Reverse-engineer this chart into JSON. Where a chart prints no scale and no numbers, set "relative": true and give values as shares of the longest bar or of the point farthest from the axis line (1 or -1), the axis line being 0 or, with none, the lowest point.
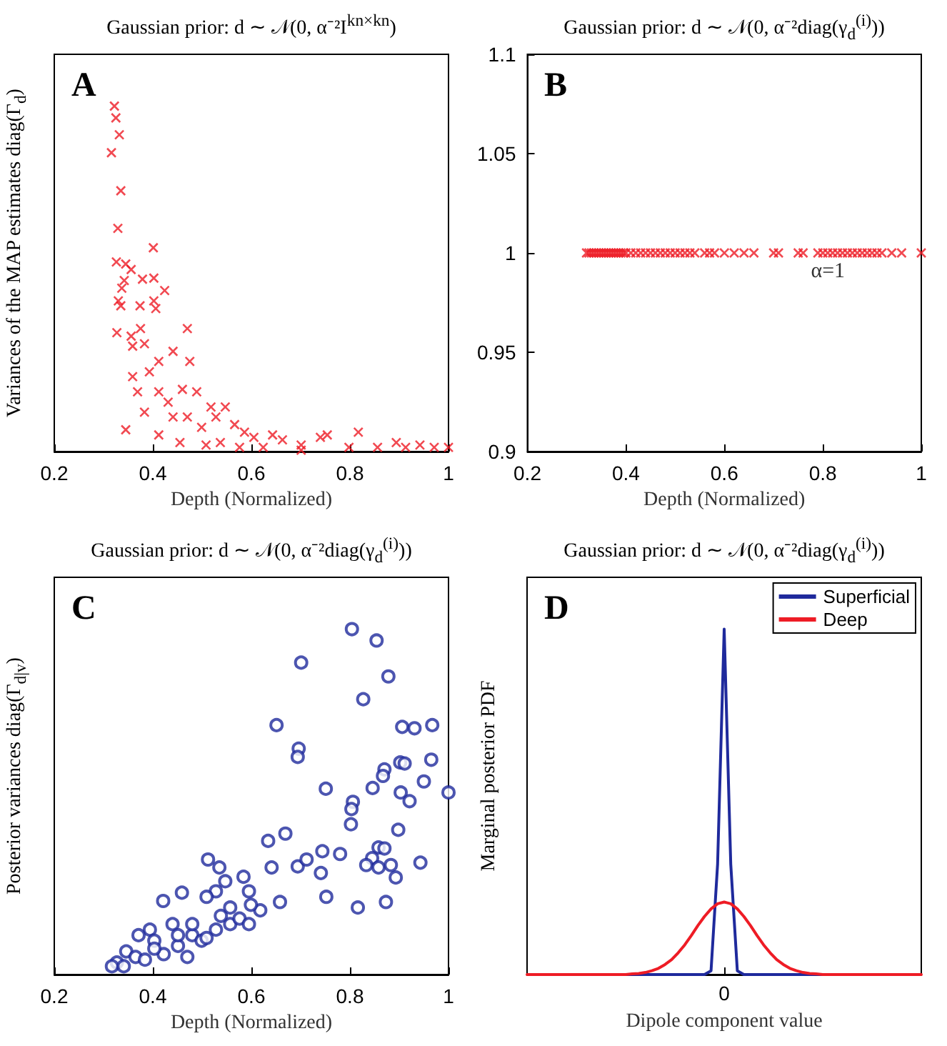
{
  "chart_data": [
    {
      "type": "scatter",
      "title": "Gaussian prior: d ∼ 𝒩(0, α⁻²I$^{kn×kn}$)",
      "xlabel": "Depth (Normalized)",
      "ylabel": "Variances of the MAP estimates diag(Γ$_{d}$)",
      "annotations": [
        "A"
      ],
      "relative": true,
      "marker": "cross",
      "xlim": [
        0.2,
        1
      ],
      "xticks": [
        0.2,
        0.4,
        0.6,
        0.8,
        1
      ],
      "series": [
        {
          "color": "#ee1c25",
          "x": [
            0.322,
            0.325,
            0.332,
            0.316,
            0.335,
            0.329,
            0.401,
            0.326,
            0.345,
            0.356,
            0.342,
            0.337,
            0.379,
            0.402,
            0.424,
            0.402,
            0.33,
            0.335,
            0.374,
            0.406,
            0.327,
            0.47,
            0.475,
            0.356,
            0.375,
            0.359,
            0.383,
            0.412,
            0.441,
            0.359,
            0.393,
            0.369,
            0.412,
            0.431,
            0.46,
            0.489,
            0.383,
            0.345,
            0.412,
            0.455,
            0.518,
            0.547,
            0.528,
            0.566,
            0.499,
            0.586,
            0.605,
            0.537,
            0.643,
            0.663,
            0.701,
            0.74,
            0.754,
            0.798,
            0.817,
            0.856,
            0.894,
            0.942,
            0.971,
            1.0,
            0.701,
            0.913,
            0.624,
            0.576,
            0.47,
            0.441,
            0.508
          ],
          "values": [
            1.0,
            0.966,
            0.917,
            0.865,
            0.755,
            0.646,
            0.59,
            0.549,
            0.543,
            0.527,
            0.495,
            0.473,
            0.499,
            0.502,
            0.466,
            0.436,
            0.436,
            0.422,
            0.422,
            0.414,
            0.344,
            0.356,
            0.261,
            0.334,
            0.356,
            0.305,
            0.312,
            0.261,
            0.29,
            0.217,
            0.231,
            0.173,
            0.173,
            0.143,
            0.18,
            0.173,
            0.114,
            0.063,
            0.048,
            0.026,
            0.129,
            0.129,
            0.1,
            0.078,
            0.07,
            0.056,
            0.041,
            0.026,
            0.048,
            0.034,
            0.019,
            0.041,
            0.048,
            0.012,
            0.056,
            0.012,
            0.026,
            0.019,
            0.012,
            0.012,
            0.004,
            0.012,
            0.012,
            0.012,
            0.1,
            0.1,
            0.019
          ]
        }
      ]
    },
    {
      "type": "scatter",
      "title": "Gaussian prior: d ∼ 𝒩(0, α⁻²diag(γ$_{d}$$^{(i)}$))",
      "xlabel": "Depth (Normalized)",
      "annotations": [
        "B",
        "α=1"
      ],
      "marker": "cross",
      "xlim": [
        0.2,
        1
      ],
      "xticks": [
        0.2,
        0.4,
        0.6,
        0.8,
        1
      ],
      "ylim": [
        0.9,
        1.1
      ],
      "yticks": [
        0.9,
        0.95,
        1,
        1.05,
        1.1
      ],
      "series": [
        {
          "color": "#ee1c25",
          "x": [
            0.32,
            0.325,
            0.33,
            0.335,
            0.34,
            0.345,
            0.35,
            0.355,
            0.36,
            0.365,
            0.37,
            0.375,
            0.38,
            0.385,
            0.39,
            0.395,
            0.4,
            0.41,
            0.42,
            0.43,
            0.44,
            0.45,
            0.46,
            0.47,
            0.48,
            0.49,
            0.5,
            0.51,
            0.52,
            0.53,
            0.54,
            0.56,
            0.57,
            0.58,
            0.6,
            0.62,
            0.64,
            0.66,
            0.7,
            0.71,
            0.75,
            0.76,
            0.79,
            0.8,
            0.81,
            0.82,
            0.83,
            0.84,
            0.85,
            0.86,
            0.87,
            0.88,
            0.89,
            0.9,
            0.91,
            0.92,
            0.94,
            0.96,
            1.0
          ],
          "values": [
            1,
            1,
            1,
            1,
            1,
            1,
            1,
            1,
            1,
            1,
            1,
            1,
            1,
            1,
            1,
            1,
            1,
            1,
            1,
            1,
            1,
            1,
            1,
            1,
            1,
            1,
            1,
            1,
            1,
            1,
            1,
            1,
            1,
            1,
            1,
            1,
            1,
            1,
            1,
            1,
            1,
            1,
            1,
            1,
            1,
            1,
            1,
            1,
            1,
            1,
            1,
            1,
            1,
            1,
            1,
            1,
            1,
            1,
            1
          ]
        }
      ]
    },
    {
      "type": "scatter",
      "title": "Gaussian prior: d ∼ 𝒩(0, α⁻²diag(γ$_{d}$$^{(i)}$))",
      "xlabel": "Depth (Normalized)",
      "ylabel": "Posterior variances diag(Γ$_{d|v}$)",
      "annotations": [
        "C"
      ],
      "relative": true,
      "marker": "circle",
      "xlim": [
        0.2,
        1
      ],
      "xticks": [
        0.2,
        0.4,
        0.6,
        0.8,
        1
      ],
      "series": [
        {
          "color": "#1f2a9c",
          "x": [
            0.804,
            0.854,
            0.701,
            0.878,
            0.827,
            0.651,
            0.696,
            0.694,
            0.906,
            0.931,
            0.967,
            0.902,
            0.911,
            0.965,
            0.87,
            0.867,
            0.751,
            1.0,
            0.903,
            0.921,
            0.806,
            0.803,
            0.802,
            0.846,
            0.95,
            0.898,
            0.634,
            0.512,
            0.535,
            0.584,
            0.641,
            0.694,
            0.712,
            0.744,
            0.78,
            0.741,
            0.752,
            0.816,
            0.873,
            0.893,
            0.943,
            0.858,
            0.845,
            0.833,
            0.858,
            0.883,
            0.87,
            0.669,
            0.658,
            0.618,
            0.595,
            0.599,
            0.547,
            0.528,
            0.509,
            0.459,
            0.421,
            0.44,
            0.394,
            0.371,
            0.403,
            0.451,
            0.48,
            0.499,
            0.528,
            0.557,
            0.576,
            0.595,
            0.47,
            0.346,
            0.365,
            0.327,
            0.317,
            0.341,
            0.384,
            0.422,
            0.509,
            0.538,
            0.557,
            0.48,
            0.403,
            0.451
          ],
          "values": [
            1.0,
            0.967,
            0.903,
            0.863,
            0.797,
            0.722,
            0.654,
            0.63,
            0.717,
            0.713,
            0.722,
            0.614,
            0.611,
            0.622,
            0.594,
            0.575,
            0.538,
            0.527,
            0.527,
            0.502,
            0.5,
            0.479,
            0.435,
            0.54,
            0.559,
            0.419,
            0.387,
            0.333,
            0.31,
            0.283,
            0.31,
            0.313,
            0.333,
            0.357,
            0.349,
            0.294,
            0.225,
            0.194,
            0.21,
            0.281,
            0.324,
            0.368,
            0.337,
            0.317,
            0.31,
            0.317,
            0.365,
            0.408,
            0.21,
            0.186,
            0.241,
            0.202,
            0.27,
            0.241,
            0.225,
            0.237,
            0.213,
            0.146,
            0.13,
            0.114,
            0.098,
            0.083,
            0.114,
            0.098,
            0.13,
            0.146,
            0.162,
            0.146,
            0.051,
            0.067,
            0.051,
            0.035,
            0.024,
            0.024,
            0.043,
            0.059,
            0.106,
            0.17,
            0.194,
            0.146,
            0.075,
            0.114
          ]
        }
      ]
    },
    {
      "type": "line",
      "title": "Gaussian prior: d ∼ 𝒩(0, α⁻²diag(γ$_{d}$$^{(i)}$))",
      "xlabel": "Dipole component value",
      "ylabel": "Marginal posterior PDF",
      "annotations": [
        "D",
        "0"
      ],
      "relative": true,
      "marker": "none",
      "line_style": "solid",
      "legend": "top right",
      "categories": [
        null,
        null,
        null,
        null,
        null,
        null,
        null,
        null,
        null,
        null,
        null,
        null,
        null,
        null,
        null,
        null,
        null,
        null,
        null,
        null,
        null,
        null,
        null,
        null,
        null,
        null,
        null,
        null,
        null,
        null,
        null,
        null,
        null,
        null,
        null,
        null,
        null,
        null,
        null,
        null,
        null,
        null,
        null,
        null,
        null,
        null,
        null,
        null,
        null,
        null,
        null,
        null,
        null,
        null,
        null,
        null,
        null,
        null,
        null,
        null,
        null
      ],
      "series": [
        {
          "name": "Superficial",
          "color": "#1f2a9c",
          "values": [
            null,
            null,
            null,
            null,
            null,
            null,
            null,
            null,
            null,
            null,
            null,
            null,
            null,
            null,
            0,
            0,
            0,
            0,
            0,
            0,
            0,
            0,
            0,
            0,
            0,
            0,
            0,
            0,
            0.011,
            0.32,
            1,
            0.32,
            0.011,
            0,
            0,
            0,
            0,
            0,
            0,
            0,
            0,
            0,
            0,
            0,
            0,
            0,
            0,
            null,
            null,
            null,
            null,
            null,
            null,
            null,
            null,
            null,
            null,
            null,
            null,
            null,
            null
          ]
        },
        {
          "name": "Deep",
          "color": "#ee1c25",
          "values": [
            0,
            0,
            0,
            0,
            0,
            0,
            0,
            0,
            0,
            0,
            0,
            0,
            0,
            0,
            0,
            0,
            0.002,
            0.003,
            0.006,
            0.011,
            0.018,
            0.029,
            0.043,
            0.063,
            0.086,
            0.113,
            0.142,
            0.168,
            0.19,
            0.205,
            0.21,
            0.205,
            0.19,
            0.168,
            0.142,
            0.113,
            0.086,
            0.063,
            0.043,
            0.029,
            0.018,
            0.011,
            0.006,
            0.003,
            0.002,
            0,
            0,
            0,
            0,
            0,
            0,
            0,
            0,
            0,
            0,
            0,
            0,
            0,
            0,
            0,
            0
          ]
        }
      ]
    }
  ]
}
